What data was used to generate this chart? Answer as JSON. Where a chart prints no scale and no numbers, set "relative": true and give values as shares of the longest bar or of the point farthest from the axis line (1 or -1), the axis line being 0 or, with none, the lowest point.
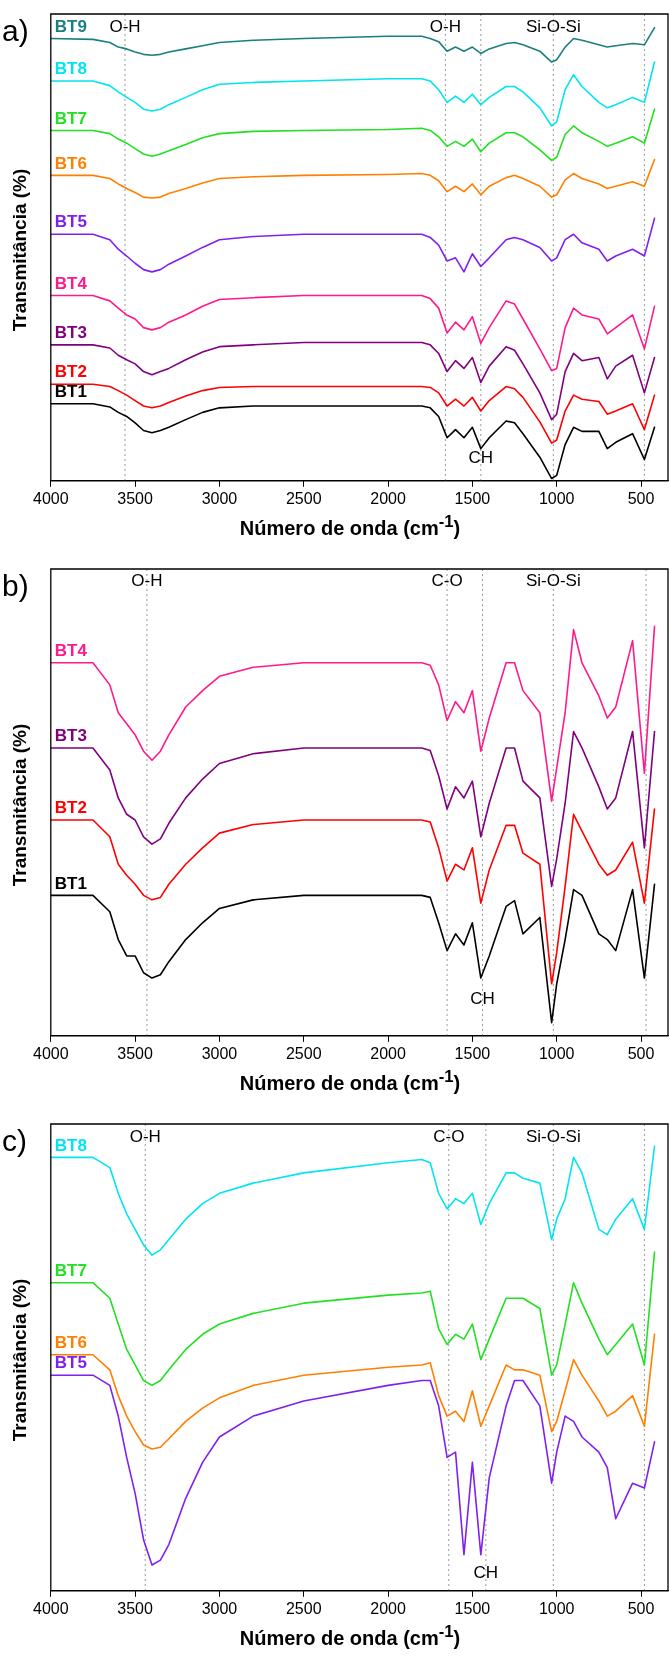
{
  "chart_data": [
    {
      "type": "line",
      "title": "a)",
      "xlabel": "Número de onda (cm$^{-1}$)",
      "ylabel": "Transmitância (%)",
      "relative": true,
      "marker": "none",
      "line_style": "solid",
      "xlim": [
        4000,
        340
      ],
      "xticks": [
        4000,
        3500,
        3000,
        2500,
        2000,
        1500,
        1000,
        500
      ],
      "x": [
        4000,
        3750,
        3650,
        3600,
        3550,
        3500,
        3450,
        3400,
        3350,
        3300,
        3200,
        3100,
        3000,
        2800,
        2500,
        2000,
        1800,
        1750,
        1700,
        1650,
        1600,
        1550,
        1500,
        1450,
        1400,
        1300,
        1250,
        1200,
        1100,
        1030,
        1000,
        950,
        900,
        850,
        750,
        700,
        650,
        550,
        480,
        420
      ],
      "ref_lines": [
        {
          "axis": "x",
          "value": 3560,
          "color": "#999999",
          "line_style": "dotted"
        },
        {
          "axis": "x",
          "value": 1660,
          "color": "#999999",
          "line_style": "dotted"
        },
        {
          "axis": "x",
          "value": 1450,
          "color": "#999999",
          "line_style": "dotted"
        },
        {
          "axis": "x",
          "value": 1020,
          "color": "#999999",
          "line_style": "dotted"
        },
        {
          "axis": "x",
          "value": 480,
          "color": "#999999",
          "line_style": "dotted"
        }
      ],
      "annotations": [
        {
          "text": "O-H",
          "x": 3560,
          "y": 1.0
        },
        {
          "text": "O-H",
          "x": 1660,
          "y": 1.0
        },
        {
          "text": "Si-O-Si",
          "x": 1020,
          "y": 1.0
        },
        {
          "text": "CH",
          "x": 1450,
          "y": 0.05
        }
      ],
      "series": [
        {
          "name": "BT1",
          "color": "#000000",
          "values": [
            0.17,
            0.17,
            0.163,
            0.151,
            0.142,
            0.128,
            0.111,
            0.106,
            0.111,
            0.118,
            0.135,
            0.151,
            0.161,
            0.165,
            0.165,
            0.165,
            0.165,
            0.161,
            0.142,
            0.095,
            0.113,
            0.095,
            0.118,
            0.071,
            0.095,
            0.132,
            0.128,
            0.104,
            0.052,
            0.005,
            0.012,
            0.08,
            0.118,
            0.109,
            0.109,
            0.071,
            0.085,
            0.104,
            0.047,
            0.118
          ]
        },
        {
          "name": "BT2",
          "color": "#ff0000",
          "values": [
            0.213,
            0.213,
            0.208,
            0.199,
            0.189,
            0.177,
            0.165,
            0.161,
            0.165,
            0.173,
            0.187,
            0.199,
            0.206,
            0.208,
            0.208,
            0.208,
            0.208,
            0.206,
            0.194,
            0.165,
            0.18,
            0.165,
            0.184,
            0.154,
            0.177,
            0.208,
            0.203,
            0.184,
            0.13,
            0.083,
            0.09,
            0.154,
            0.189,
            0.18,
            0.175,
            0.147,
            0.154,
            0.17,
            0.113,
            0.189
          ]
        },
        {
          "name": "BT3",
          "color": "#800080",
          "values": [
            0.3,
            0.3,
            0.293,
            0.277,
            0.267,
            0.258,
            0.241,
            0.234,
            0.241,
            0.248,
            0.267,
            0.284,
            0.296,
            0.3,
            0.305,
            0.305,
            0.305,
            0.3,
            0.281,
            0.241,
            0.265,
            0.248,
            0.272,
            0.217,
            0.253,
            0.296,
            0.288,
            0.258,
            0.194,
            0.135,
            0.147,
            0.241,
            0.281,
            0.265,
            0.272,
            0.225,
            0.253,
            0.277,
            0.194,
            0.272
          ]
        },
        {
          "name": "BT4",
          "color": "#ff1a8c",
          "values": [
            0.409,
            0.409,
            0.397,
            0.381,
            0.366,
            0.357,
            0.338,
            0.333,
            0.338,
            0.35,
            0.366,
            0.385,
            0.4,
            0.404,
            0.409,
            0.409,
            0.409,
            0.402,
            0.381,
            0.326,
            0.35,
            0.333,
            0.362,
            0.303,
            0.338,
            0.397,
            0.39,
            0.357,
            0.291,
            0.243,
            0.248,
            0.338,
            0.381,
            0.366,
            0.357,
            0.324,
            0.338,
            0.366,
            0.291,
            0.385
          ]
        },
        {
          "name": "BT5",
          "color": "#8020f0",
          "values": [
            0.544,
            0.544,
            0.532,
            0.511,
            0.496,
            0.48,
            0.466,
            0.461,
            0.466,
            0.478,
            0.496,
            0.515,
            0.532,
            0.539,
            0.544,
            0.544,
            0.544,
            0.537,
            0.52,
            0.485,
            0.492,
            0.461,
            0.501,
            0.473,
            0.492,
            0.532,
            0.537,
            0.532,
            0.515,
            0.485,
            0.492,
            0.532,
            0.544,
            0.525,
            0.511,
            0.485,
            0.496,
            0.511,
            0.496,
            0.579
          ]
        },
        {
          "name": "BT6",
          "color": "#ff8000",
          "values": [
            0.674,
            0.674,
            0.667,
            0.655,
            0.645,
            0.636,
            0.626,
            0.624,
            0.626,
            0.634,
            0.645,
            0.657,
            0.667,
            0.671,
            0.674,
            0.676,
            0.678,
            0.674,
            0.662,
            0.638,
            0.65,
            0.638,
            0.655,
            0.631,
            0.65,
            0.669,
            0.674,
            0.667,
            0.65,
            0.626,
            0.631,
            0.664,
            0.678,
            0.667,
            0.655,
            0.645,
            0.65,
            0.66,
            0.65,
            0.709
          ]
        },
        {
          "name": "BT7",
          "color": "#22e022",
          "values": [
            0.773,
            0.773,
            0.766,
            0.754,
            0.745,
            0.733,
            0.721,
            0.716,
            0.721,
            0.728,
            0.742,
            0.757,
            0.766,
            0.771,
            0.773,
            0.775,
            0.778,
            0.773,
            0.759,
            0.738,
            0.749,
            0.738,
            0.754,
            0.726,
            0.745,
            0.768,
            0.768,
            0.759,
            0.73,
            0.707,
            0.714,
            0.764,
            0.783,
            0.768,
            0.749,
            0.738,
            0.745,
            0.759,
            0.745,
            0.82
          ]
        },
        {
          "name": "BT8",
          "color": "#00e5f0",
          "values": [
            0.882,
            0.882,
            0.872,
            0.858,
            0.846,
            0.835,
            0.82,
            0.816,
            0.82,
            0.83,
            0.846,
            0.863,
            0.875,
            0.879,
            0.882,
            0.887,
            0.887,
            0.882,
            0.863,
            0.835,
            0.849,
            0.835,
            0.853,
            0.83,
            0.846,
            0.87,
            0.87,
            0.858,
            0.823,
            0.783,
            0.792,
            0.863,
            0.896,
            0.87,
            0.835,
            0.823,
            0.83,
            0.846,
            0.835,
            0.924
          ]
        },
        {
          "name": "BT9",
          "color": "#1a7f7f",
          "values": [
            0.976,
            0.974,
            0.967,
            0.957,
            0.953,
            0.946,
            0.941,
            0.939,
            0.941,
            0.946,
            0.953,
            0.96,
            0.967,
            0.972,
            0.976,
            0.981,
            0.981,
            0.976,
            0.969,
            0.948,
            0.957,
            0.948,
            0.957,
            0.943,
            0.953,
            0.965,
            0.967,
            0.962,
            0.948,
            0.924,
            0.929,
            0.957,
            0.976,
            0.972,
            0.962,
            0.957,
            0.96,
            0.965,
            0.962,
            1
          ]
        }
      ]
    },
    {
      "type": "line",
      "title": "b)",
      "xlabel": "Número de onda (cm$^{-1}$)",
      "ylabel": "Transmitância (%)",
      "relative": true,
      "marker": "none",
      "line_style": "solid",
      "xlim": [
        4000,
        340
      ],
      "xticks": [
        4000,
        3500,
        3000,
        2500,
        2000,
        1500,
        1000,
        500
      ],
      "x": [
        4000,
        3750,
        3650,
        3600,
        3550,
        3500,
        3450,
        3400,
        3350,
        3300,
        3200,
        3100,
        3000,
        2800,
        2500,
        2000,
        1800,
        1750,
        1700,
        1650,
        1600,
        1550,
        1500,
        1450,
        1400,
        1300,
        1250,
        1200,
        1100,
        1030,
        1000,
        950,
        900,
        850,
        750,
        700,
        650,
        550,
        480,
        420
      ],
      "ref_lines": [
        {
          "axis": "x",
          "value": 3430,
          "color": "#999999",
          "line_style": "dotted"
        },
        {
          "axis": "x",
          "value": 1650,
          "color": "#999999",
          "line_style": "dotted"
        },
        {
          "axis": "x",
          "value": 1440,
          "color": "#999999",
          "line_style": "dotted"
        },
        {
          "axis": "x",
          "value": 1020,
          "color": "#999999",
          "line_style": "dotted"
        },
        {
          "axis": "x",
          "value": 470,
          "color": "#999999",
          "line_style": "dotted"
        }
      ],
      "annotations": [
        {
          "text": "O-H",
          "x": 3430,
          "y": 1.11
        },
        {
          "text": "C-O",
          "x": 1650,
          "y": 1.11
        },
        {
          "text": "Si-O-Si",
          "x": 1020,
          "y": 1.11
        },
        {
          "text": "CH",
          "x": 1440,
          "y": 0.09
        }
      ],
      "series": [
        {
          "name": "BT1",
          "color": "#000000",
          "values": [
            0.343,
            0.343,
            0.303,
            0.235,
            0.195,
            0.195,
            0.154,
            0.141,
            0.149,
            0.181,
            0.235,
            0.276,
            0.311,
            0.332,
            0.343,
            0.343,
            0.343,
            0.338,
            0.276,
            0.208,
            0.249,
            0.222,
            0.276,
            0.141,
            0.195,
            0.316,
            0.33,
            0.249,
            0.289,
            0.032,
            0.127,
            0.235,
            0.357,
            0.343,
            0.249,
            0.235,
            0.208,
            0.357,
            0.141,
            0.37
          ]
        },
        {
          "name": "BT2",
          "color": "#ff0000",
          "values": [
            0.527,
            0.527,
            0.486,
            0.419,
            0.392,
            0.37,
            0.343,
            0.332,
            0.338,
            0.37,
            0.419,
            0.459,
            0.495,
            0.516,
            0.527,
            0.527,
            0.527,
            0.522,
            0.459,
            0.378,
            0.419,
            0.405,
            0.459,
            0.324,
            0.405,
            0.514,
            0.514,
            0.446,
            0.419,
            0.127,
            0.203,
            0.365,
            0.541,
            0.5,
            0.419,
            0.392,
            0.405,
            0.473,
            0.324,
            0.554
          ]
        },
        {
          "name": "BT3",
          "color": "#800080",
          "values": [
            0.703,
            0.703,
            0.649,
            0.581,
            0.541,
            0.527,
            0.486,
            0.468,
            0.481,
            0.519,
            0.581,
            0.627,
            0.665,
            0.689,
            0.703,
            0.703,
            0.703,
            0.697,
            0.635,
            0.554,
            0.608,
            0.581,
            0.622,
            0.486,
            0.568,
            0.703,
            0.703,
            0.622,
            0.581,
            0.365,
            0.432,
            0.568,
            0.743,
            0.703,
            0.608,
            0.554,
            0.581,
            0.743,
            0.459,
            0.743
          ]
        },
        {
          "name": "BT4",
          "color": "#ff1a8c",
          "values": [
            0.911,
            0.911,
            0.857,
            0.789,
            0.762,
            0.735,
            0.695,
            0.673,
            0.695,
            0.735,
            0.803,
            0.843,
            0.878,
            0.9,
            0.911,
            0.911,
            0.911,
            0.905,
            0.857,
            0.77,
            0.816,
            0.789,
            0.843,
            0.695,
            0.776,
            0.911,
            0.911,
            0.843,
            0.789,
            0.573,
            0.654,
            0.789,
            0.992,
            0.911,
            0.83,
            0.776,
            0.803,
            0.965,
            0.641,
            1
          ]
        }
      ]
    },
    {
      "type": "line",
      "title": "c)",
      "xlabel": "Número de onda (cm$^{-1}$)",
      "ylabel": "Transmitância (%)",
      "relative": true,
      "marker": "none",
      "line_style": "solid",
      "xlim": [
        4000,
        340
      ],
      "xticks": [
        4000,
        3500,
        3000,
        2500,
        2000,
        1500,
        1000,
        500
      ],
      "x": [
        4000,
        3750,
        3650,
        3600,
        3550,
        3500,
        3450,
        3400,
        3350,
        3300,
        3200,
        3100,
        3000,
        2800,
        2500,
        2000,
        1800,
        1750,
        1700,
        1650,
        1600,
        1550,
        1500,
        1450,
        1400,
        1300,
        1250,
        1200,
        1100,
        1030,
        1000,
        950,
        900,
        850,
        750,
        700,
        650,
        550,
        480,
        420
      ],
      "ref_lines": [
        {
          "axis": "x",
          "value": 3440,
          "color": "#999999",
          "line_style": "dotted"
        },
        {
          "axis": "x",
          "value": 1640,
          "color": "#999999",
          "line_style": "dotted"
        },
        {
          "axis": "x",
          "value": 1420,
          "color": "#999999",
          "line_style": "dotted"
        },
        {
          "axis": "x",
          "value": 1020,
          "color": "#999999",
          "line_style": "dotted"
        },
        {
          "axis": "x",
          "value": 480,
          "color": "#999999",
          "line_style": "dotted"
        }
      ],
      "annotations": [
        {
          "text": "O-H",
          "x": 3440,
          "y": 1.02
        },
        {
          "text": "C-O",
          "x": 1640,
          "y": 1.02
        },
        {
          "text": "Si-O-Si",
          "x": 1020,
          "y": 1.02
        },
        {
          "text": "CH",
          "x": 1420,
          "y": 0.04
        }
      ],
      "series": [
        {
          "name": "BT5",
          "color": "#8020f0",
          "values": [
            0.485,
            0.485,
            0.462,
            0.393,
            0.3,
            0.219,
            0.115,
            0.058,
            0.069,
            0.104,
            0.208,
            0.289,
            0.346,
            0.393,
            0.427,
            0.462,
            0.473,
            0.473,
            0.416,
            0.3,
            0.312,
            0.081,
            0.289,
            0.081,
            0.254,
            0.416,
            0.473,
            0.473,
            0.416,
            0.242,
            0.312,
            0.393,
            0.381,
            0.346,
            0.312,
            0.277,
            0.162,
            0.242,
            0.231,
            0.335
          ]
        },
        {
          "name": "BT6",
          "color": "#ff8000",
          "values": [
            0.531,
            0.531,
            0.497,
            0.439,
            0.393,
            0.358,
            0.328,
            0.319,
            0.323,
            0.342,
            0.381,
            0.411,
            0.434,
            0.462,
            0.485,
            0.503,
            0.508,
            0.513,
            0.439,
            0.393,
            0.404,
            0.381,
            0.45,
            0.37,
            0.416,
            0.508,
            0.497,
            0.497,
            0.485,
            0.358,
            0.381,
            0.45,
            0.52,
            0.485,
            0.427,
            0.393,
            0.404,
            0.439,
            0.37,
            0.577
          ]
        },
        {
          "name": "BT7",
          "color": "#22e022",
          "values": [
            0.693,
            0.693,
            0.658,
            0.6,
            0.543,
            0.508,
            0.473,
            0.462,
            0.473,
            0.497,
            0.543,
            0.577,
            0.6,
            0.624,
            0.647,
            0.665,
            0.67,
            0.674,
            0.589,
            0.554,
            0.577,
            0.566,
            0.6,
            0.52,
            0.566,
            0.658,
            0.658,
            0.658,
            0.635,
            0.485,
            0.508,
            0.6,
            0.693,
            0.647,
            0.566,
            0.531,
            0.554,
            0.6,
            0.508,
            0.762
          ]
        },
        {
          "name": "BT8",
          "color": "#00e5f0",
          "values": [
            0.975,
            0.975,
            0.952,
            0.894,
            0.848,
            0.813,
            0.778,
            0.755,
            0.767,
            0.79,
            0.836,
            0.871,
            0.894,
            0.917,
            0.94,
            0.963,
            0.97,
            0.963,
            0.894,
            0.859,
            0.882,
            0.871,
            0.894,
            0.824,
            0.871,
            0.94,
            0.94,
            0.928,
            0.917,
            0.79,
            0.836,
            0.882,
            0.975,
            0.94,
            0.813,
            0.801,
            0.836,
            0.882,
            0.813,
            1
          ]
        }
      ]
    }
  ]
}
